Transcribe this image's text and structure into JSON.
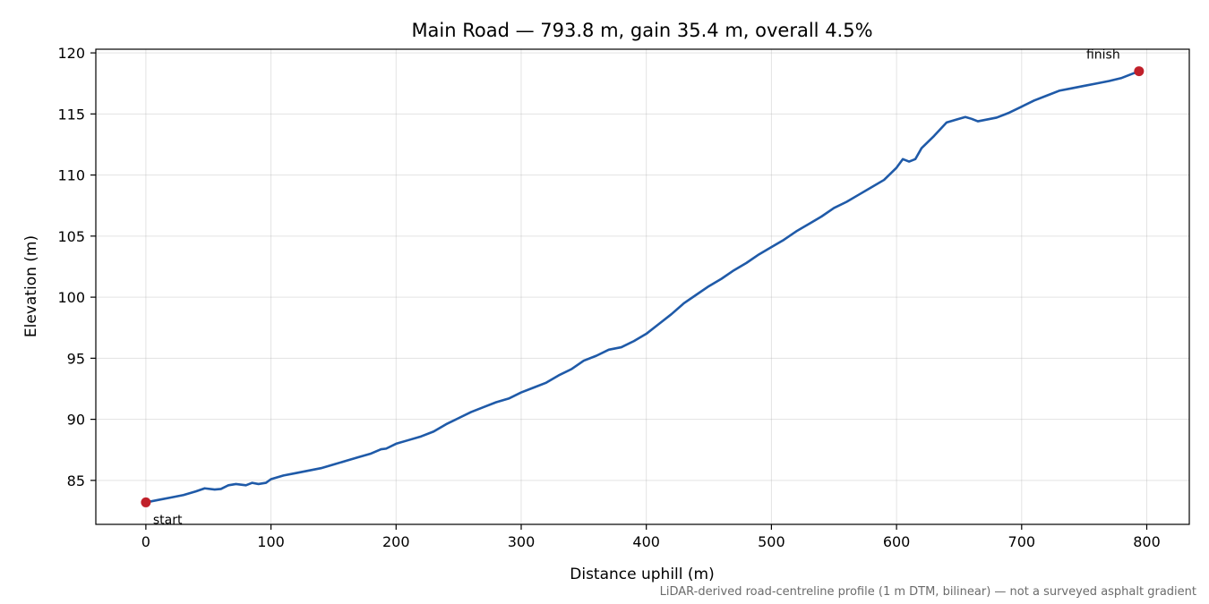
{
  "chart_data": {
    "type": "line",
    "title": "Main Road — 793.8 m, gain 35.4 m, overall 4.5%",
    "xlabel": "Distance uphill (m)",
    "ylabel": "Elevation (m)",
    "xlim": [
      -40,
      834
    ],
    "ylim": [
      81.4,
      120.3
    ],
    "xticks": [
      0,
      100,
      200,
      300,
      400,
      500,
      600,
      700,
      800
    ],
    "yticks": [
      85,
      90,
      95,
      100,
      105,
      110,
      115,
      120
    ],
    "grid": true,
    "line_color": "#1f5aa8",
    "marker_color": "#c0202a",
    "footnote": "LiDAR-derived road-centreline profile (1 m DTM, bilinear) — not a surveyed asphalt gradient",
    "series": [
      {
        "x": [
          0,
          10,
          20,
          30,
          40,
          47,
          55,
          60,
          66,
          72,
          80,
          85,
          90,
          96,
          100,
          110,
          120,
          130,
          140,
          150,
          160,
          170,
          180,
          188,
          192,
          200,
          210,
          220,
          230,
          240,
          250,
          260,
          270,
          280,
          290,
          300,
          310,
          320,
          330,
          340,
          350,
          360,
          370,
          380,
          390,
          400,
          410,
          420,
          430,
          440,
          450,
          460,
          470,
          480,
          490,
          500,
          510,
          520,
          530,
          540,
          550,
          560,
          570,
          580,
          590,
          600,
          605,
          610,
          615,
          620,
          630,
          640,
          650,
          655,
          660,
          665,
          670,
          675,
          680,
          690,
          700,
          710,
          720,
          730,
          740,
          750,
          760,
          770,
          780,
          793.8
        ],
        "values": [
          83.2,
          83.4,
          83.6,
          83.8,
          84.1,
          84.35,
          84.25,
          84.3,
          84.6,
          84.7,
          84.6,
          84.8,
          84.7,
          84.8,
          85.1,
          85.4,
          85.6,
          85.8,
          86.0,
          86.3,
          86.6,
          86.9,
          87.2,
          87.55,
          87.6,
          88.0,
          88.3,
          88.6,
          89.0,
          89.6,
          90.1,
          90.6,
          91.0,
          91.4,
          91.7,
          92.2,
          92.6,
          93.0,
          93.6,
          94.1,
          94.8,
          95.2,
          95.7,
          95.9,
          96.4,
          97.0,
          97.8,
          98.6,
          99.5,
          100.2,
          100.9,
          101.5,
          102.2,
          102.8,
          103.5,
          104.1,
          104.7,
          105.4,
          106.0,
          106.6,
          107.3,
          107.8,
          108.4,
          109.0,
          109.6,
          110.6,
          111.3,
          111.1,
          111.3,
          112.2,
          113.2,
          114.3,
          114.6,
          114.75,
          114.6,
          114.4,
          114.5,
          114.6,
          114.7,
          115.1,
          115.6,
          116.1,
          116.5,
          116.9,
          117.1,
          117.3,
          117.5,
          117.7,
          117.95,
          118.5
        ]
      }
    ],
    "annotations": [
      {
        "label": "start",
        "x": 0,
        "y": 83.2
      },
      {
        "label": "finish",
        "x": 793.8,
        "y": 118.5
      }
    ]
  }
}
